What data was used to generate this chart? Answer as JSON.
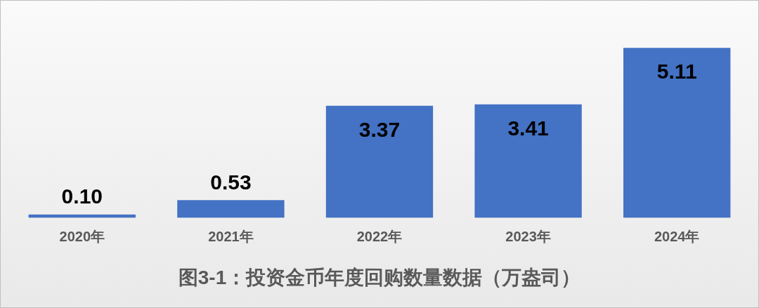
{
  "chart_data": {
    "type": "bar",
    "title": "图3-1：投资金币年度回购数量数据（万盎司）",
    "categories": [
      "2020年",
      "2021年",
      "2022年",
      "2023年",
      "2024年"
    ],
    "values": [
      0.1,
      0.53,
      3.37,
      3.41,
      5.11
    ],
    "value_labels": [
      "0.10",
      "0.53",
      "3.37",
      "3.41",
      "5.11"
    ],
    "color": "#4472c4",
    "grid": false,
    "legend": false
  }
}
